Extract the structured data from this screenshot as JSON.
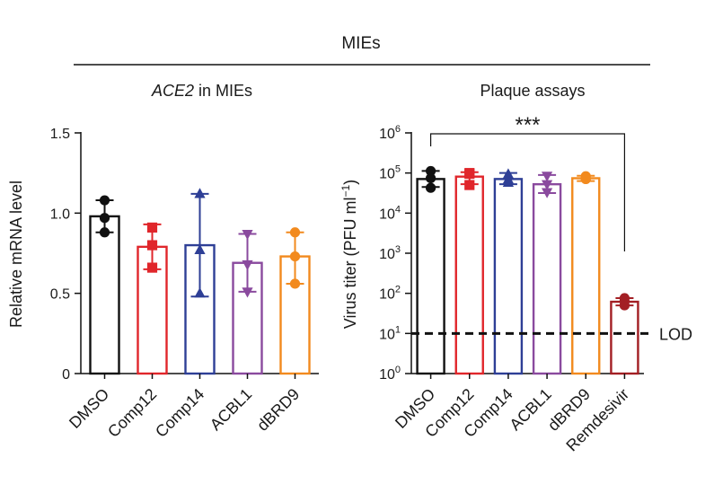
{
  "header": {
    "title": "MIEs"
  },
  "colors": {
    "DMSO": "#111111",
    "Comp12": "#e0262b",
    "Comp14": "#2e3f96",
    "ACBL1": "#8a4a9e",
    "dBRD9": "#f28a1e",
    "Remdesivir": "#a31f24"
  },
  "chart_data": [
    {
      "type": "bar",
      "title_italic": "ACE2",
      "title_rest": " in MIEs",
      "ylabel": "Relative mRNA level",
      "ylim": [
        0,
        1.5
      ],
      "yticks": [
        {
          "value": 0,
          "label": "0"
        },
        {
          "value": 0.5,
          "label": "0.5"
        },
        {
          "value": 1.0,
          "label": "1.0"
        },
        {
          "value": 1.5,
          "label": "1.5"
        }
      ],
      "categories": [
        "DMSO",
        "Comp12",
        "Comp14",
        "ACBL1",
        "dBRD9"
      ],
      "markers": [
        "circle",
        "square",
        "triangle-up",
        "triangle-down",
        "circle"
      ],
      "values": [
        0.98,
        0.79,
        0.8,
        0.69,
        0.73
      ],
      "error": [
        [
          0.88,
          1.08
        ],
        [
          0.65,
          0.93
        ],
        [
          0.48,
          1.12
        ],
        [
          0.51,
          0.87
        ],
        [
          0.56,
          0.88
        ]
      ],
      "points": [
        [
          1.08,
          0.97,
          0.88
        ],
        [
          0.91,
          0.8,
          0.66
        ],
        [
          1.12,
          0.77,
          0.5
        ],
        [
          0.87,
          0.68,
          0.51
        ],
        [
          0.88,
          0.73,
          0.56
        ]
      ]
    },
    {
      "type": "bar",
      "scale": "log",
      "title": "Plaque assays",
      "ylabel": "Virus titer (PFU ml⁻¹)",
      "ylim": [
        0,
        6
      ],
      "yticks": [
        {
          "value": 0,
          "label": "10",
          "exp": "0"
        },
        {
          "value": 1,
          "label": "10",
          "exp": "1"
        },
        {
          "value": 2,
          "label": "10",
          "exp": "2"
        },
        {
          "value": 3,
          "label": "10",
          "exp": "3"
        },
        {
          "value": 4,
          "label": "10",
          "exp": "4"
        },
        {
          "value": 5,
          "label": "10",
          "exp": "5"
        },
        {
          "value": 6,
          "label": "10",
          "exp": "6"
        }
      ],
      "categories": [
        "DMSO",
        "Comp12",
        "Comp14",
        "ACBL1",
        "dBRD9",
        "Remdesivir"
      ],
      "markers": [
        "circle",
        "square",
        "triangle-up",
        "triangle-down",
        "circle",
        "circle"
      ],
      "values_log10": [
        4.85,
        4.91,
        4.85,
        4.72,
        4.87,
        1.79
      ],
      "error_log10": [
        [
          4.65,
          5.05
        ],
        [
          4.72,
          5.02
        ],
        [
          4.72,
          5.0
        ],
        [
          4.5,
          4.95
        ],
        [
          4.8,
          4.93
        ],
        [
          1.7,
          1.88
        ]
      ],
      "points_log10": [
        [
          5.05,
          4.87,
          4.63
        ],
        [
          5.0,
          4.98,
          4.7
        ],
        [
          4.97,
          4.84,
          4.76
        ],
        [
          4.93,
          4.72,
          4.52
        ],
        [
          4.92,
          4.85,
          4.85
        ],
        [
          1.88,
          1.8,
          1.7
        ]
      ],
      "lod_log10": 1.0,
      "lod_label": "LOD",
      "significance": {
        "label": "***",
        "from": "DMSO",
        "to": "Remdesivir"
      }
    }
  ]
}
